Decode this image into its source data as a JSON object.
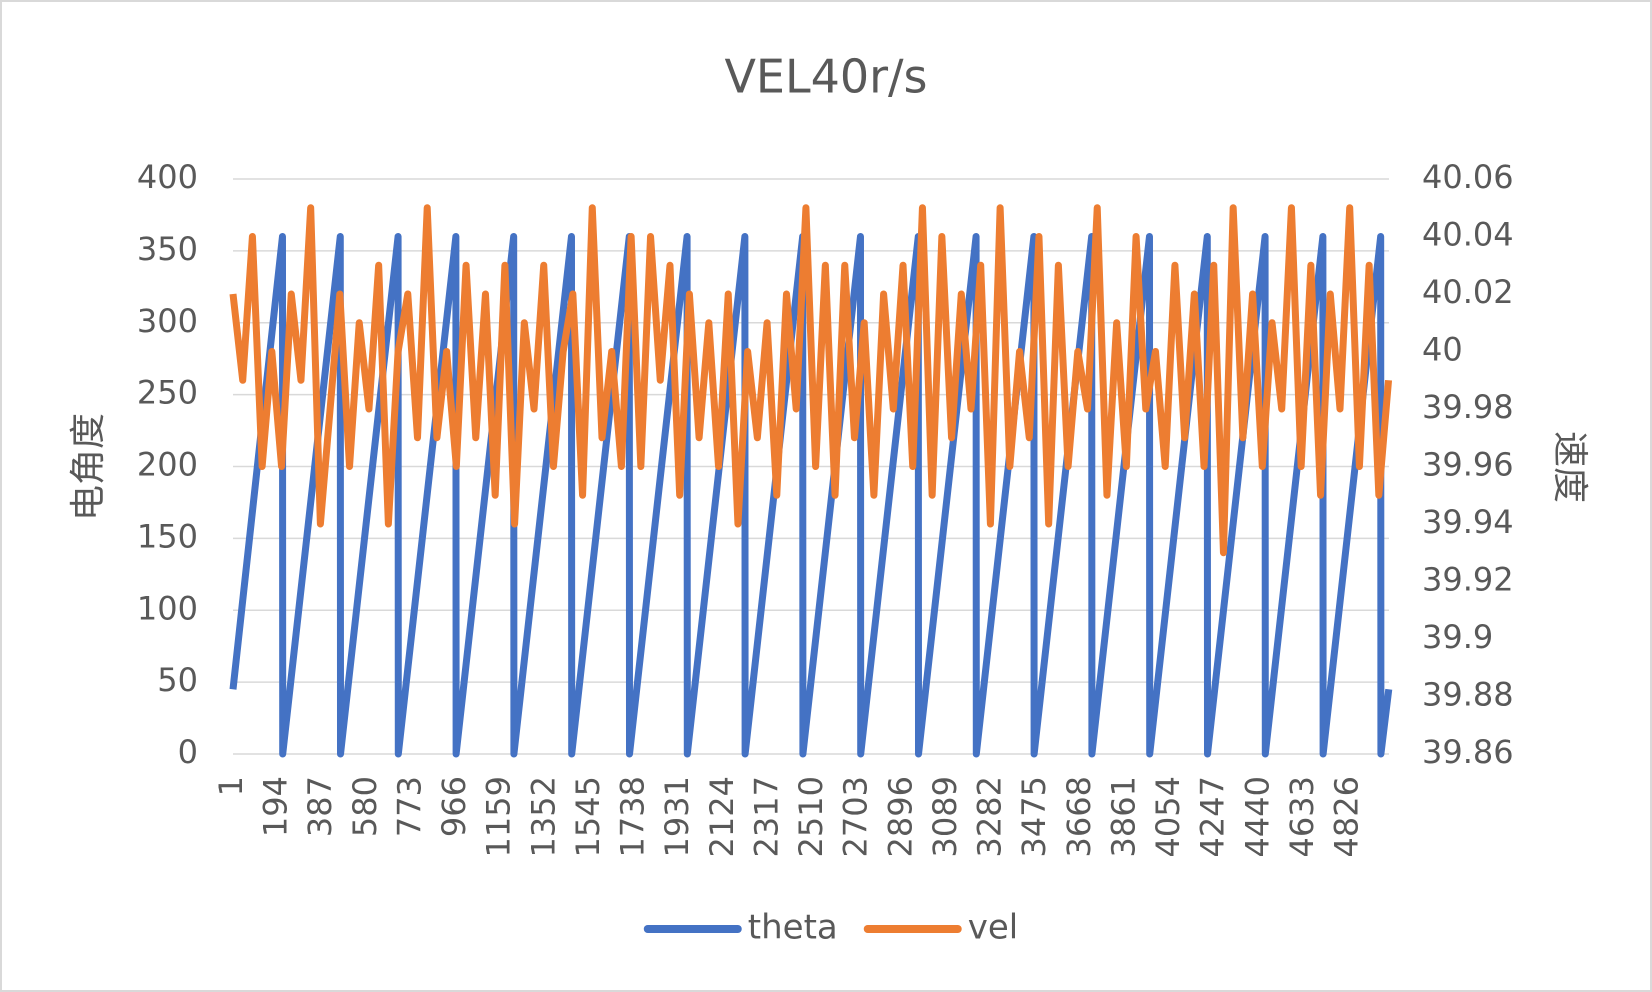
{
  "chart_data": {
    "type": "line",
    "title": "VEL40r/s",
    "y_label": "电角度",
    "y2_label": "速度",
    "xlim": [
      1,
      5001
    ],
    "xticks": [
      1,
      194,
      387,
      580,
      773,
      966,
      1159,
      1352,
      1545,
      1738,
      1931,
      2124,
      2317,
      2510,
      2703,
      2896,
      3089,
      3282,
      3475,
      3668,
      3861,
      4054,
      4247,
      4440,
      4633,
      4826
    ],
    "ylim": [
      0,
      400
    ],
    "yticks": [
      0,
      50,
      100,
      150,
      200,
      250,
      300,
      350,
      400
    ],
    "y2lim": [
      39.86,
      40.06
    ],
    "y2ticks": [
      39.86,
      39.88,
      39.9,
      39.92,
      39.94,
      39.96,
      39.98,
      40,
      40.02,
      40.04,
      40.06
    ],
    "grid": true,
    "legend": "bottom",
    "series": [
      {
        "name": "theta",
        "color": "#4472c4",
        "x": [
          1,
          215,
          216,
          465,
          466,
          715,
          716,
          965,
          966,
          1215,
          1216,
          1465,
          1466,
          1715,
          1716,
          1965,
          1966,
          2215,
          2216,
          2465,
          2466,
          2715,
          2716,
          2965,
          2966,
          3215,
          3216,
          3465,
          3466,
          3715,
          3716,
          3965,
          3966,
          4215,
          4216,
          4465,
          4466,
          4715,
          4716,
          4965,
          4966,
          5000
        ],
        "values": [
          45,
          360,
          0,
          360,
          0,
          360,
          0,
          360,
          0,
          360,
          0,
          360,
          0,
          360,
          0,
          360,
          0,
          360,
          0,
          360,
          0,
          360,
          0,
          360,
          0,
          360,
          0,
          360,
          0,
          360,
          0,
          360,
          0,
          360,
          0,
          360,
          0,
          360,
          0,
          360,
          0,
          45
        ]
      },
      {
        "name": "vel",
        "color": "#ed7d31",
        "axis": "y2",
        "x": [
          1,
          43,
          85,
          127,
          169,
          211,
          253,
          295,
          337,
          379,
          421,
          463,
          505,
          547,
          589,
          631,
          673,
          715,
          757,
          799,
          841,
          883,
          925,
          967,
          1009,
          1051,
          1093,
          1135,
          1177,
          1219,
          1261,
          1303,
          1345,
          1387,
          1429,
          1471,
          1513,
          1555,
          1597,
          1639,
          1681,
          1723,
          1765,
          1807,
          1849,
          1891,
          1933,
          1975,
          2017,
          2059,
          2101,
          2143,
          2185,
          2227,
          2269,
          2311,
          2353,
          2395,
          2437,
          2479,
          2521,
          2563,
          2605,
          2647,
          2689,
          2731,
          2773,
          2815,
          2857,
          2899,
          2941,
          2983,
          3025,
          3067,
          3109,
          3151,
          3193,
          3235,
          3277,
          3319,
          3361,
          3403,
          3445,
          3487,
          3529,
          3571,
          3613,
          3655,
          3697,
          3739,
          3781,
          3823,
          3865,
          3907,
          3949,
          3991,
          4033,
          4075,
          4117,
          4159,
          4201,
          4243,
          4285,
          4327,
          4369,
          4411,
          4453,
          4495,
          4537,
          4579,
          4621,
          4663,
          4705,
          4747,
          4789,
          4831,
          4873,
          4915,
          4957,
          4999
        ],
        "values": [
          40.02,
          39.99,
          40.04,
          39.96,
          40,
          39.96,
          40.02,
          39.99,
          40.05,
          39.94,
          39.98,
          40.02,
          39.96,
          40.01,
          39.98,
          40.03,
          39.94,
          40,
          40.02,
          39.97,
          40.05,
          39.97,
          40,
          39.96,
          40.03,
          39.97,
          40.02,
          39.95,
          40.03,
          39.94,
          40.01,
          39.98,
          40.03,
          39.96,
          40,
          40.02,
          39.95,
          40.05,
          39.97,
          40,
          39.96,
          40.04,
          39.96,
          40.04,
          39.99,
          40.03,
          39.95,
          40.02,
          39.97,
          40.01,
          39.96,
          40.02,
          39.94,
          40,
          39.97,
          40.01,
          39.95,
          40.02,
          39.98,
          40.05,
          39.96,
          40.03,
          39.95,
          40.03,
          39.97,
          40.01,
          39.95,
          40.02,
          39.98,
          40.03,
          39.96,
          40.05,
          39.95,
          40.04,
          39.97,
          40.02,
          39.98,
          40.03,
          39.94,
          40.05,
          39.96,
          40,
          39.97,
          40.04,
          39.94,
          40.03,
          39.96,
          40,
          39.98,
          40.05,
          39.95,
          40.01,
          39.96,
          40.04,
          39.98,
          40,
          39.96,
          40.03,
          39.97,
          40.02,
          39.96,
          40.03,
          39.93,
          40.05,
          39.97,
          40.02,
          39.96,
          40.01,
          39.98,
          40.05,
          39.96,
          40.03,
          39.95,
          40.02,
          39.98,
          40.05,
          39.96,
          40.03,
          39.95,
          39.99
        ]
      }
    ]
  }
}
